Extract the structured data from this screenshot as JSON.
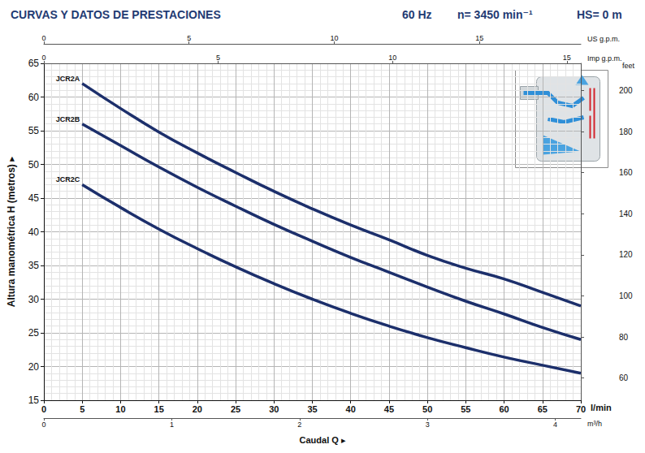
{
  "chart_data": {
    "type": "line",
    "title": "CURVAS Y DATOS DE PRESTACIONES",
    "annotations": [
      "60 Hz",
      "n= 3450 min⁻¹",
      "HS= 0 m"
    ],
    "xlabel": "Caudal Q ▸",
    "x_unit": "l/min",
    "ylabel": "Altura manométrica H (metros) ▸",
    "x": [
      5,
      10,
      15,
      20,
      25,
      30,
      35,
      40,
      45,
      50,
      55,
      60,
      65,
      70
    ],
    "series": [
      {
        "name": "JCR2A",
        "color": "#1c2f6b",
        "values": [
          62,
          58.3,
          54.8,
          51.7,
          48.8,
          46.0,
          43.4,
          41.0,
          38.8,
          36.5,
          34.6,
          33.0,
          31.0,
          29.0
        ]
      },
      {
        "name": "JCR2B",
        "color": "#1c2f6b",
        "values": [
          56,
          52.8,
          49.6,
          46.6,
          43.8,
          41.1,
          38.6,
          36.2,
          34.0,
          31.8,
          29.7,
          27.8,
          25.8,
          24.0
        ]
      },
      {
        "name": "JCR2C",
        "color": "#1c2f6b",
        "values": [
          47,
          43.6,
          40.4,
          37.5,
          34.8,
          32.3,
          30.0,
          27.9,
          26.0,
          24.3,
          22.8,
          21.4,
          20.2,
          19.0
        ]
      }
    ],
    "xlim": [
      0,
      70
    ],
    "xticks": [
      0,
      5,
      10,
      15,
      20,
      25,
      30,
      35,
      40,
      45,
      50,
      55,
      60,
      65,
      70
    ],
    "ylim": [
      15,
      65
    ],
    "yticks": [
      15,
      20,
      25,
      30,
      35,
      40,
      45,
      50,
      55,
      60,
      65
    ],
    "y2label": "feet",
    "y2lim": [
      49.21,
      213.25
    ],
    "y2ticks": [
      60,
      80,
      100,
      120,
      140,
      160,
      180,
      200
    ],
    "secondary_x_axes": [
      {
        "label": "US g.p.m.",
        "position": "top",
        "lim": [
          0,
          18.49
        ],
        "ticks": [
          0,
          5,
          10,
          15
        ]
      },
      {
        "label": "Imp g.p.m.",
        "position": "top",
        "lim": [
          0,
          15.4
        ],
        "ticks": [
          0,
          5,
          10,
          15
        ]
      },
      {
        "label": "m³/h",
        "position": "bottom",
        "lim": [
          0,
          4.2
        ],
        "ticks": [
          0,
          1,
          2,
          3,
          4
        ]
      }
    ],
    "grid": true
  }
}
